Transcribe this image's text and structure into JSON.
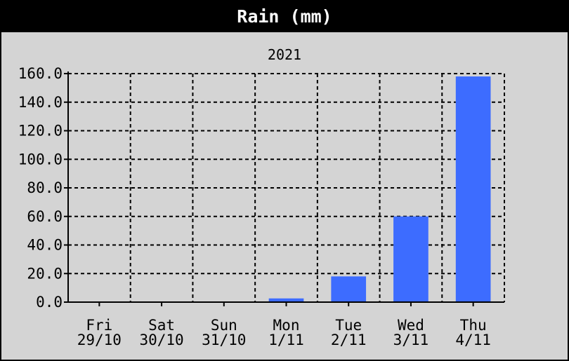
{
  "chart_data": {
    "type": "bar",
    "title": "Rain (mm)",
    "subtitle": "2021",
    "categories": [
      [
        "Fri",
        "29/10"
      ],
      [
        "Sat",
        "30/10"
      ],
      [
        "Sun",
        "31/10"
      ],
      [
        "Mon",
        "1/11"
      ],
      [
        "Tue",
        "2/11"
      ],
      [
        "Wed",
        "3/11"
      ],
      [
        "Thu",
        "4/11"
      ]
    ],
    "values": [
      0.4,
      0.4,
      0.4,
      2.6,
      18.0,
      60.0,
      158.0
    ],
    "yticks": [
      "0.0",
      "20.0",
      "40.0",
      "60.0",
      "80.0",
      "100.0",
      "120.0",
      "140.0",
      "160.0"
    ],
    "ylim": [
      0,
      160
    ],
    "grid": true,
    "colors": {
      "bar": "#3d6cff",
      "background": "#d4d4d4",
      "title_bg": "#000000",
      "grid": "#000000"
    }
  }
}
